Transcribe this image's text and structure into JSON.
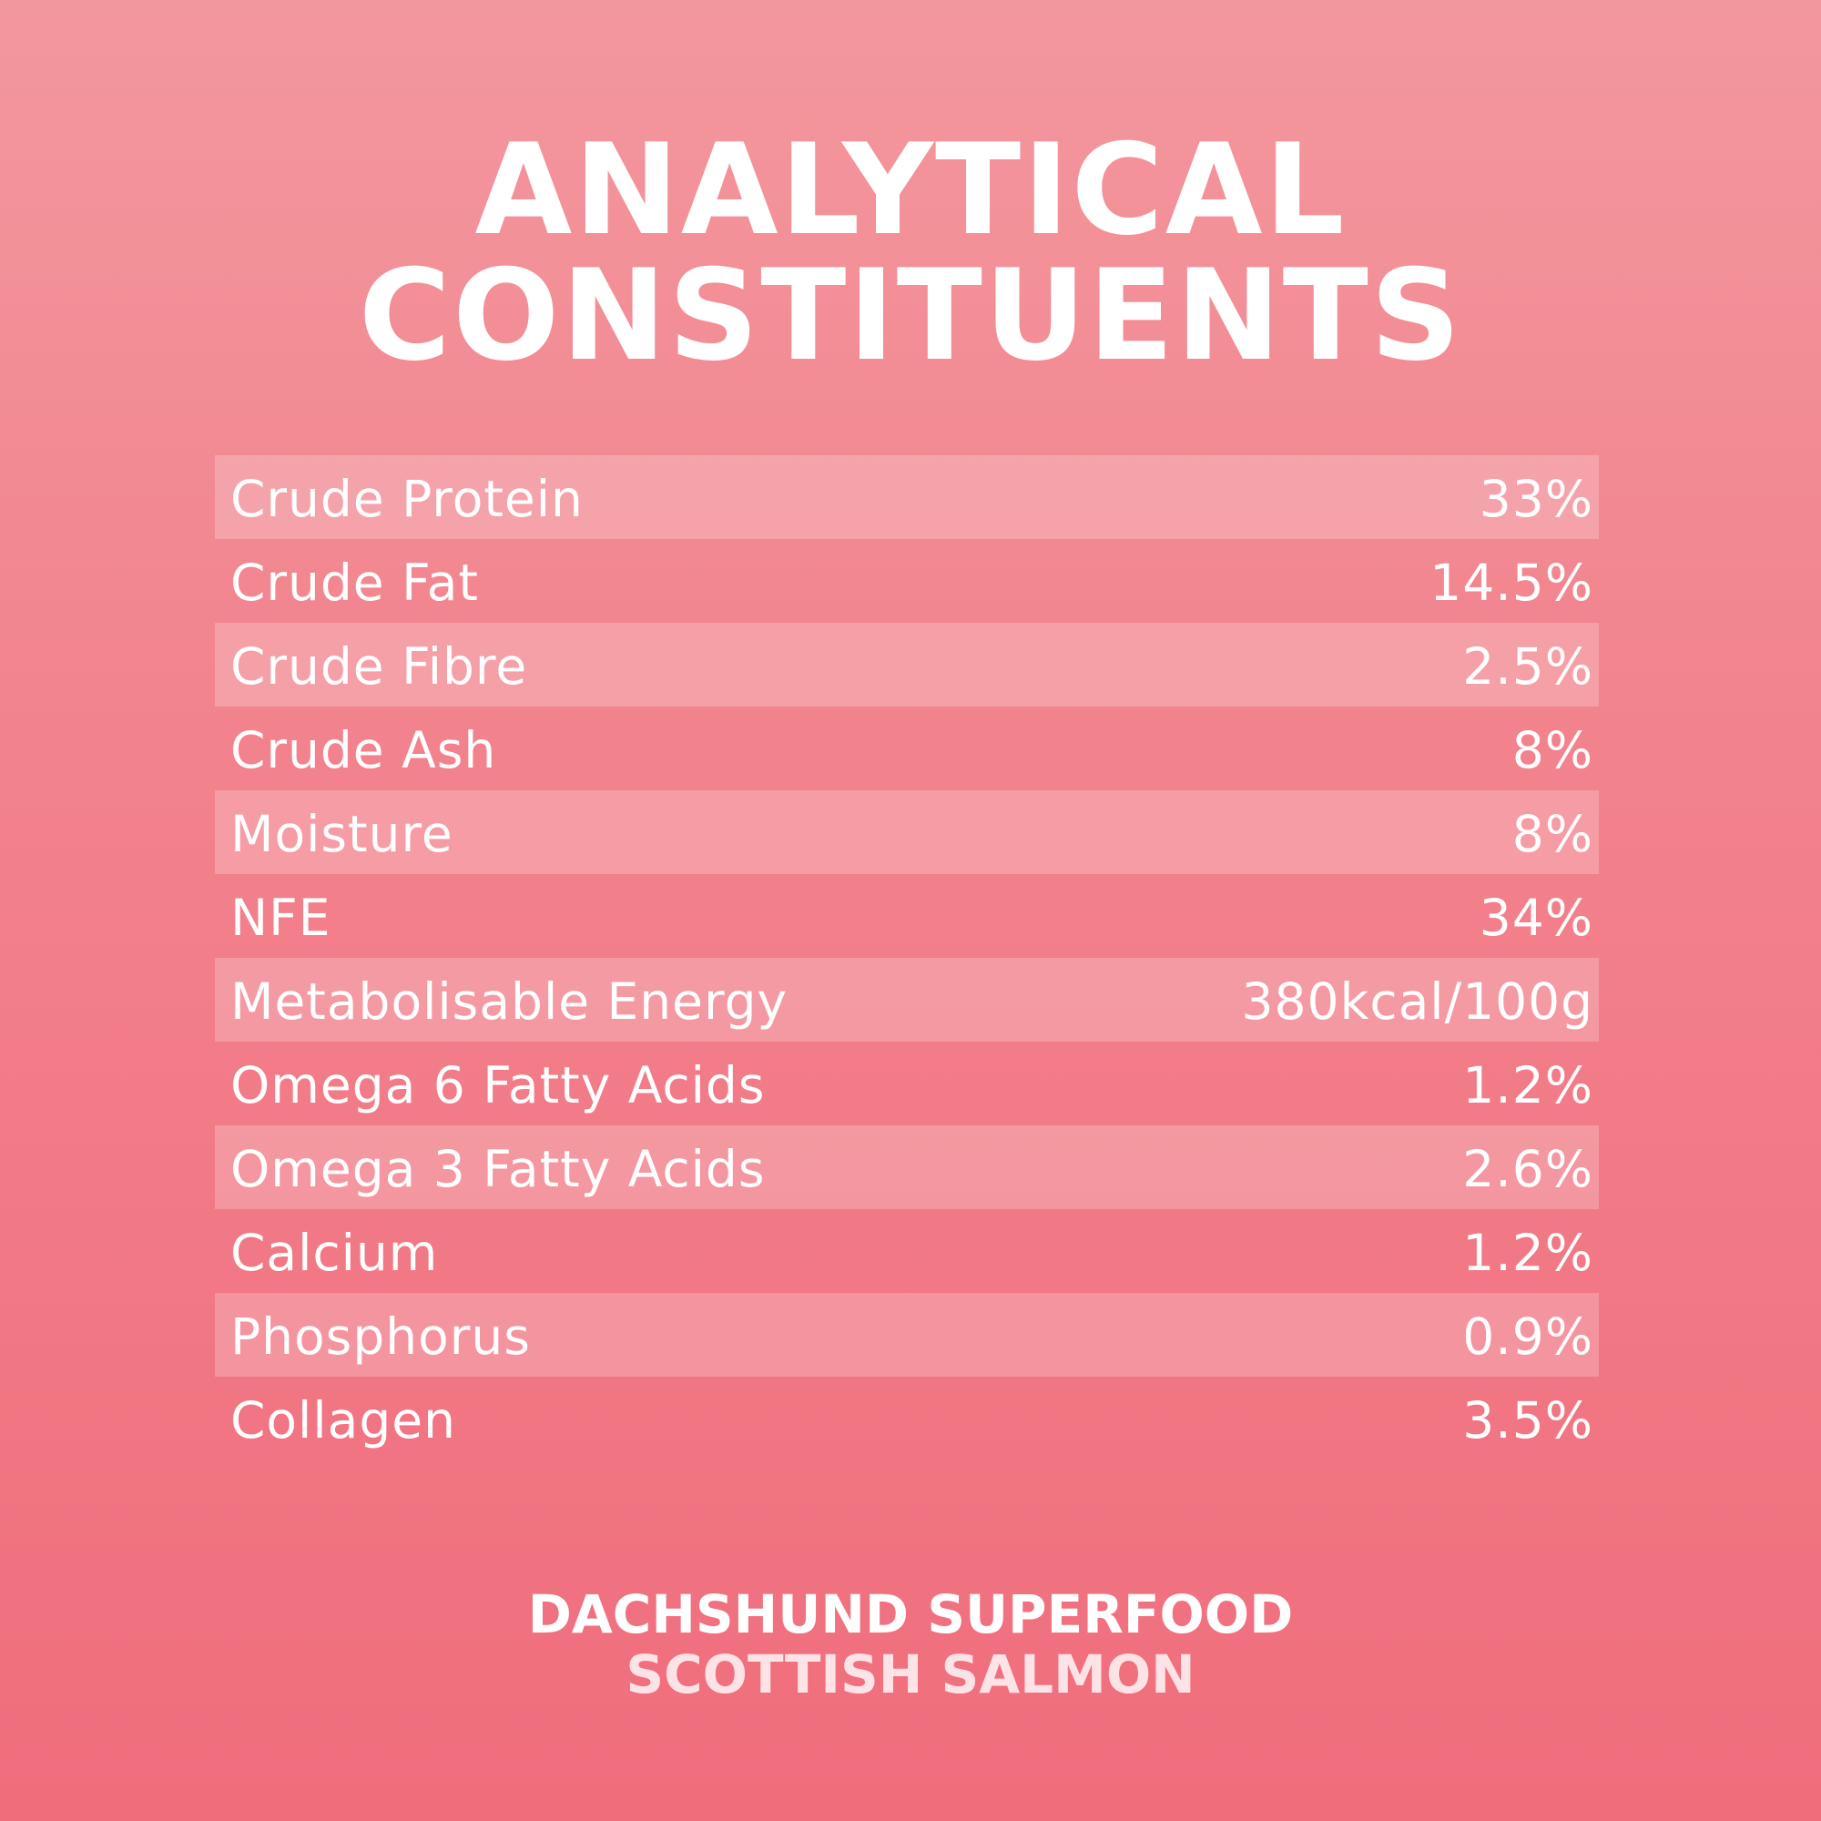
{
  "title": {
    "lines": [
      "ANALYTICAL",
      "CONSTITUENTS"
    ]
  },
  "table": {
    "rows": [
      [
        "Crude Protein",
        "33%"
      ],
      [
        "Crude Fat",
        "14.5%"
      ],
      [
        "Crude Fibre",
        "2.5%"
      ],
      [
        "Crude Ash",
        "8%"
      ],
      [
        "Moisture",
        "8%"
      ],
      [
        "NFE",
        "34%"
      ],
      [
        "Metabolisable Energy",
        "380kcal/100g"
      ],
      [
        "Omega 6 Fatty Acids",
        "1.2%"
      ],
      [
        "Omega 3 Fatty Acids",
        "2.6%"
      ],
      [
        "Calcium",
        "1.2%"
      ],
      [
        "Phosphorus",
        "0.9%"
      ],
      [
        "Collagen",
        "3.5%"
      ]
    ]
  },
  "footer": {
    "lines": [
      "DACHSHUND SUPERFOOD",
      "SCOTTISH SALMON"
    ]
  }
}
